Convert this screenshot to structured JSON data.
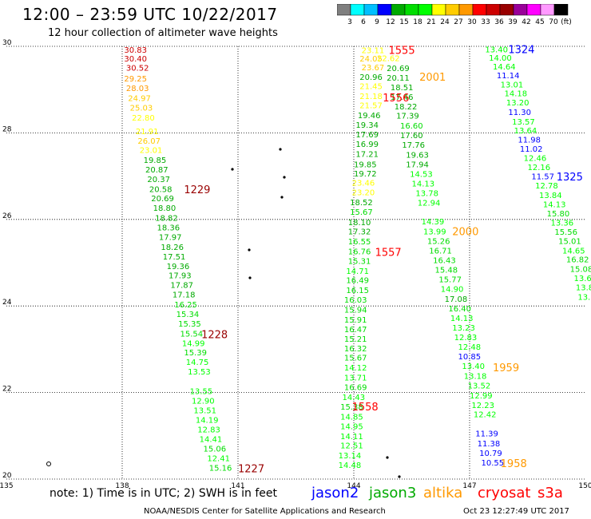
{
  "header": {
    "title": "12:00 – 23:59 UTC 10/22/2017",
    "subtitle": "12 hour collection of altimeter wave heights"
  },
  "colorbar": {
    "colors": [
      "#7f7f7f",
      "#00ffff",
      "#00bfff",
      "#0000ff",
      "#00aa00",
      "#00dd00",
      "#00ff00",
      "#ffff00",
      "#ffcc00",
      "#ff9900",
      "#ff0000",
      "#cc0000",
      "#990000",
      "#990099",
      "#ff00ff",
      "#ff99ff",
      "#000000"
    ],
    "labels": [
      "3",
      "6",
      "9",
      "12",
      "15",
      "18",
      "21",
      "24",
      "27",
      "30",
      "33",
      "36",
      "39",
      "42",
      "45",
      "70"
    ],
    "unit": "(ft)"
  },
  "chart_data": {
    "type": "scatter",
    "xlim": [
      135,
      150
    ],
    "ylim": [
      20,
      30
    ],
    "x_ticks": [
      "135",
      "138",
      "141",
      "144",
      "147",
      "150"
    ],
    "y_ticks": [
      "30",
      "28",
      "26",
      "24",
      "22",
      "20"
    ],
    "grid": true,
    "points": [
      {
        "x": 138.05,
        "y": 29.93,
        "v": "30.83",
        "c": "#cc0000"
      },
      {
        "x": 138.05,
        "y": 29.72,
        "v": "30.40",
        "c": "#cc0000"
      },
      {
        "x": 138.1,
        "y": 29.51,
        "v": "30.52",
        "c": "#cc0000"
      },
      {
        "x": 138.05,
        "y": 29.26,
        "v": "29.25",
        "c": "#ff9900"
      },
      {
        "x": 138.1,
        "y": 29.04,
        "v": "28.03",
        "c": "#ff9900"
      },
      {
        "x": 138.15,
        "y": 28.81,
        "v": "24.97",
        "c": "#ffcc00"
      },
      {
        "x": 138.2,
        "y": 28.59,
        "v": "25.03",
        "c": "#ffcc00"
      },
      {
        "x": 138.25,
        "y": 28.36,
        "v": "22.80",
        "c": "#ffff00"
      },
      {
        "x": 138.35,
        "y": 28.04,
        "v": "21.91",
        "c": "#ffff00"
      },
      {
        "x": 138.4,
        "y": 27.82,
        "v": "26.07",
        "c": "#ffcc00"
      },
      {
        "x": 138.45,
        "y": 27.61,
        "v": "23.01",
        "c": "#ffff00"
      },
      {
        "x": 138.55,
        "y": 27.38,
        "v": "19.85",
        "c": "#00aa00"
      },
      {
        "x": 138.6,
        "y": 27.16,
        "v": "20.87",
        "c": "#00aa00"
      },
      {
        "x": 138.65,
        "y": 26.94,
        "v": "20.37",
        "c": "#00aa00"
      },
      {
        "x": 138.7,
        "y": 26.71,
        "v": "20.58",
        "c": "#00aa00"
      },
      {
        "x": 138.75,
        "y": 26.49,
        "v": "20.69",
        "c": "#00aa00"
      },
      {
        "x": 138.8,
        "y": 26.27,
        "v": "18.80",
        "c": "#00aa00"
      },
      {
        "x": 138.85,
        "y": 26.04,
        "v": "18.82",
        "c": "#00aa00"
      },
      {
        "x": 138.9,
        "y": 25.82,
        "v": "18.36",
        "c": "#00aa00"
      },
      {
        "x": 138.95,
        "y": 25.6,
        "v": "17.97",
        "c": "#00aa00"
      },
      {
        "x": 139.0,
        "y": 25.37,
        "v": "18.26",
        "c": "#00aa00"
      },
      {
        "x": 139.05,
        "y": 25.15,
        "v": "17.51",
        "c": "#00aa00"
      },
      {
        "x": 139.15,
        "y": 24.93,
        "v": "19.36",
        "c": "#00aa00"
      },
      {
        "x": 139.2,
        "y": 24.71,
        "v": "17.93",
        "c": "#00aa00"
      },
      {
        "x": 139.25,
        "y": 24.49,
        "v": "17.87",
        "c": "#00aa00"
      },
      {
        "x": 139.3,
        "y": 24.27,
        "v": "17.18",
        "c": "#00aa00"
      },
      {
        "x": 139.35,
        "y": 24.04,
        "v": "16.25",
        "c": "#00dd00"
      },
      {
        "x": 139.4,
        "y": 23.82,
        "v": "15.34",
        "c": "#00dd00"
      },
      {
        "x": 139.45,
        "y": 23.6,
        "v": "15.35",
        "c": "#00dd00"
      },
      {
        "x": 139.5,
        "y": 23.37,
        "v": "15.54",
        "c": "#00dd00"
      },
      {
        "x": 139.55,
        "y": 23.15,
        "v": "14.99",
        "c": "#00ff00"
      },
      {
        "x": 139.6,
        "y": 22.93,
        "v": "15.39",
        "c": "#00dd00"
      },
      {
        "x": 139.65,
        "y": 22.71,
        "v": "14.75",
        "c": "#00ff00"
      },
      {
        "x": 139.7,
        "y": 22.49,
        "v": "13.53",
        "c": "#00ff00"
      },
      {
        "x": 139.75,
        "y": 22.04,
        "v": "13.55",
        "c": "#00ff00"
      },
      {
        "x": 139.8,
        "y": 21.82,
        "v": "12.90",
        "c": "#00ff00"
      },
      {
        "x": 139.85,
        "y": 21.6,
        "v": "13.51",
        "c": "#00ff00"
      },
      {
        "x": 139.9,
        "y": 21.37,
        "v": "14.19",
        "c": "#00ff00"
      },
      {
        "x": 139.95,
        "y": 21.15,
        "v": "12.83",
        "c": "#00ff00"
      },
      {
        "x": 140.0,
        "y": 20.93,
        "v": "14.41",
        "c": "#00ff00"
      },
      {
        "x": 140.1,
        "y": 20.71,
        "v": "15.06",
        "c": "#00dd00"
      },
      {
        "x": 140.2,
        "y": 20.49,
        "v": "12.41",
        "c": "#00ff00"
      },
      {
        "x": 140.25,
        "y": 20.27,
        "v": "15.16",
        "c": "#00dd00"
      },
      {
        "x": 144.2,
        "y": 29.92,
        "v": "23.11",
        "c": "#ffff00"
      },
      {
        "x": 144.15,
        "y": 29.72,
        "v": "24.05",
        "c": "#ffcc00"
      },
      {
        "x": 144.2,
        "y": 29.52,
        "v": "23.67",
        "c": "#ffcc00"
      },
      {
        "x": 144.15,
        "y": 29.3,
        "v": "20.96",
        "c": "#00aa00"
      },
      {
        "x": 144.15,
        "y": 29.09,
        "v": "21.45",
        "c": "#ffff00"
      },
      {
        "x": 144.15,
        "y": 28.86,
        "v": "21.18",
        "c": "#ffff00"
      },
      {
        "x": 144.15,
        "y": 28.64,
        "v": "21.57",
        "c": "#ffff00"
      },
      {
        "x": 144.1,
        "y": 28.41,
        "v": "19.46",
        "c": "#00aa00"
      },
      {
        "x": 144.05,
        "y": 28.19,
        "v": "19.34",
        "c": "#00aa00"
      },
      {
        "x": 144.05,
        "y": 27.97,
        "v": "17.69",
        "c": "#00aa00"
      },
      {
        "x": 144.05,
        "y": 27.75,
        "v": "16.99",
        "c": "#00aa00"
      },
      {
        "x": 144.05,
        "y": 27.52,
        "v": "17.21",
        "c": "#00aa00"
      },
      {
        "x": 144.0,
        "y": 27.28,
        "v": "19.85",
        "c": "#00aa00"
      },
      {
        "x": 144.0,
        "y": 27.07,
        "v": "19.72",
        "c": "#00aa00"
      },
      {
        "x": 143.95,
        "y": 26.85,
        "v": "23.46",
        "c": "#ffff00"
      },
      {
        "x": 143.95,
        "y": 26.63,
        "v": "23.20",
        "c": "#ffff00"
      },
      {
        "x": 143.9,
        "y": 26.4,
        "v": "18.52",
        "c": "#00aa00"
      },
      {
        "x": 143.9,
        "y": 26.18,
        "v": "15.67",
        "c": "#00dd00"
      },
      {
        "x": 143.85,
        "y": 25.94,
        "v": "18.10",
        "c": "#00aa00"
      },
      {
        "x": 143.85,
        "y": 25.73,
        "v": "17.32",
        "c": "#00aa00"
      },
      {
        "x": 143.85,
        "y": 25.5,
        "v": "16.55",
        "c": "#00dd00"
      },
      {
        "x": 143.85,
        "y": 25.27,
        "v": "16.76",
        "c": "#00dd00"
      },
      {
        "x": 143.85,
        "y": 25.05,
        "v": "15.31",
        "c": "#00dd00"
      },
      {
        "x": 143.8,
        "y": 24.82,
        "v": "14.71",
        "c": "#00ff00"
      },
      {
        "x": 143.8,
        "y": 24.6,
        "v": "16.49",
        "c": "#00dd00"
      },
      {
        "x": 143.8,
        "y": 24.37,
        "v": "16.15",
        "c": "#00dd00"
      },
      {
        "x": 143.75,
        "y": 24.15,
        "v": "16.03",
        "c": "#00dd00"
      },
      {
        "x": 143.75,
        "y": 23.92,
        "v": "15.94",
        "c": "#00dd00"
      },
      {
        "x": 143.75,
        "y": 23.69,
        "v": "15.91",
        "c": "#00dd00"
      },
      {
        "x": 143.75,
        "y": 23.47,
        "v": "16.47",
        "c": "#00dd00"
      },
      {
        "x": 143.75,
        "y": 23.25,
        "v": "15.21",
        "c": "#00dd00"
      },
      {
        "x": 143.75,
        "y": 23.03,
        "v": "16.32",
        "c": "#00dd00"
      },
      {
        "x": 143.75,
        "y": 22.81,
        "v": "15.67",
        "c": "#00dd00"
      },
      {
        "x": 143.75,
        "y": 22.58,
        "v": "14.12",
        "c": "#00ff00"
      },
      {
        "x": 143.75,
        "y": 22.35,
        "v": "13.71",
        "c": "#00ff00"
      },
      {
        "x": 143.75,
        "y": 22.13,
        "v": "16.69",
        "c": "#00dd00"
      },
      {
        "x": 143.7,
        "y": 21.9,
        "v": "14.43",
        "c": "#00ff00"
      },
      {
        "x": 143.65,
        "y": 21.68,
        "v": "15.38",
        "c": "#00dd00"
      },
      {
        "x": 143.65,
        "y": 21.45,
        "v": "14.85",
        "c": "#00ff00"
      },
      {
        "x": 143.65,
        "y": 21.23,
        "v": "14.95",
        "c": "#00ff00"
      },
      {
        "x": 143.65,
        "y": 21.0,
        "v": "14.11",
        "c": "#00ff00"
      },
      {
        "x": 143.65,
        "y": 20.78,
        "v": "12.51",
        "c": "#00ff00"
      },
      {
        "x": 143.6,
        "y": 20.55,
        "v": "13.14",
        "c": "#00ff00"
      },
      {
        "x": 143.6,
        "y": 20.33,
        "v": "14.48",
        "c": "#00ff00"
      },
      {
        "x": 144.6,
        "y": 29.73,
        "v": "22.62",
        "c": "#ffff00"
      },
      {
        "x": 144.85,
        "y": 29.5,
        "v": "20.69",
        "c": "#00aa00"
      },
      {
        "x": 144.85,
        "y": 29.28,
        "v": "20.11",
        "c": "#00aa00"
      },
      {
        "x": 144.95,
        "y": 29.06,
        "v": "18.51",
        "c": "#00aa00"
      },
      {
        "x": 144.95,
        "y": 28.84,
        "v": "17.46",
        "c": "#00aa00"
      },
      {
        "x": 145.05,
        "y": 28.62,
        "v": "18.22",
        "c": "#00aa00"
      },
      {
        "x": 145.1,
        "y": 28.4,
        "v": "17.39",
        "c": "#00aa00"
      },
      {
        "x": 145.2,
        "y": 28.17,
        "v": "16.60",
        "c": "#00dd00"
      },
      {
        "x": 145.2,
        "y": 27.95,
        "v": "17.60",
        "c": "#00aa00"
      },
      {
        "x": 145.25,
        "y": 27.73,
        "v": "17.76",
        "c": "#00aa00"
      },
      {
        "x": 145.35,
        "y": 27.5,
        "v": "19.63",
        "c": "#00aa00"
      },
      {
        "x": 145.35,
        "y": 27.28,
        "v": "17.94",
        "c": "#00aa00"
      },
      {
        "x": 145.45,
        "y": 27.06,
        "v": "14.53",
        "c": "#00ff00"
      },
      {
        "x": 145.5,
        "y": 26.84,
        "v": "14.13",
        "c": "#00ff00"
      },
      {
        "x": 145.6,
        "y": 26.61,
        "v": "13.78",
        "c": "#00ff00"
      },
      {
        "x": 145.65,
        "y": 26.39,
        "v": "12.94",
        "c": "#00ff00"
      },
      {
        "x": 145.75,
        "y": 25.96,
        "v": "14.39",
        "c": "#00ff00"
      },
      {
        "x": 145.8,
        "y": 25.73,
        "v": "13.99",
        "c": "#00ff00"
      },
      {
        "x": 145.9,
        "y": 25.51,
        "v": "15.26",
        "c": "#00dd00"
      },
      {
        "x": 145.95,
        "y": 25.29,
        "v": "16.71",
        "c": "#00dd00"
      },
      {
        "x": 146.05,
        "y": 25.06,
        "v": "16.43",
        "c": "#00dd00"
      },
      {
        "x": 146.1,
        "y": 24.84,
        "v": "15.48",
        "c": "#00dd00"
      },
      {
        "x": 146.2,
        "y": 24.62,
        "v": "15.77",
        "c": "#00dd00"
      },
      {
        "x": 146.25,
        "y": 24.4,
        "v": "14.90",
        "c": "#00ff00"
      },
      {
        "x": 146.35,
        "y": 24.17,
        "v": "17.08",
        "c": "#00aa00"
      },
      {
        "x": 146.45,
        "y": 23.95,
        "v": "16.40",
        "c": "#00dd00"
      },
      {
        "x": 146.5,
        "y": 23.73,
        "v": "14.13",
        "c": "#00ff00"
      },
      {
        "x": 146.55,
        "y": 23.51,
        "v": "13.23",
        "c": "#00ff00"
      },
      {
        "x": 146.6,
        "y": 23.28,
        "v": "12.83",
        "c": "#00ff00"
      },
      {
        "x": 146.7,
        "y": 23.06,
        "v": "12.48",
        "c": "#00ff00"
      },
      {
        "x": 146.7,
        "y": 22.84,
        "v": "10.85",
        "c": "#0000ff"
      },
      {
        "x": 146.8,
        "y": 22.62,
        "v": "13.40",
        "c": "#00ff00"
      },
      {
        "x": 146.85,
        "y": 22.39,
        "v": "13.18",
        "c": "#00ff00"
      },
      {
        "x": 146.95,
        "y": 22.17,
        "v": "13.52",
        "c": "#00ff00"
      },
      {
        "x": 147.0,
        "y": 21.94,
        "v": "12.99",
        "c": "#00ff00"
      },
      {
        "x": 147.05,
        "y": 21.72,
        "v": "12.23",
        "c": "#00ff00"
      },
      {
        "x": 147.1,
        "y": 21.5,
        "v": "12.42",
        "c": "#00ff00"
      },
      {
        "x": 147.15,
        "y": 21.06,
        "v": "11.39",
        "c": "#0000ff"
      },
      {
        "x": 147.2,
        "y": 20.83,
        "v": "11.38",
        "c": "#0000ff"
      },
      {
        "x": 147.25,
        "y": 20.61,
        "v": "10.79",
        "c": "#0000ff"
      },
      {
        "x": 147.3,
        "y": 20.39,
        "v": "10.55",
        "c": "#0000ff"
      },
      {
        "x": 147.4,
        "y": 29.94,
        "v": "13.40",
        "c": "#00ff00"
      },
      {
        "x": 147.5,
        "y": 29.74,
        "v": "14.00",
        "c": "#00ff00"
      },
      {
        "x": 147.6,
        "y": 29.54,
        "v": "14.64",
        "c": "#00ff00"
      },
      {
        "x": 147.7,
        "y": 29.34,
        "v": "11.14",
        "c": "#0000ff"
      },
      {
        "x": 147.8,
        "y": 29.12,
        "v": "13.01",
        "c": "#00ff00"
      },
      {
        "x": 147.9,
        "y": 28.92,
        "v": "14.18",
        "c": "#00ff00"
      },
      {
        "x": 147.95,
        "y": 28.71,
        "v": "13.20",
        "c": "#00ff00"
      },
      {
        "x": 148.0,
        "y": 28.49,
        "v": "11.30",
        "c": "#0000ff"
      },
      {
        "x": 148.1,
        "y": 28.27,
        "v": "13.57",
        "c": "#00ff00"
      },
      {
        "x": 148.15,
        "y": 28.06,
        "v": "13.64",
        "c": "#00ff00"
      },
      {
        "x": 148.25,
        "y": 27.85,
        "v": "11.98",
        "c": "#0000ff"
      },
      {
        "x": 148.3,
        "y": 27.64,
        "v": "11.02",
        "c": "#0000ff"
      },
      {
        "x": 148.4,
        "y": 27.43,
        "v": "12.46",
        "c": "#00ff00"
      },
      {
        "x": 148.5,
        "y": 27.21,
        "v": "12.16",
        "c": "#00ff00"
      },
      {
        "x": 148.6,
        "y": 27.0,
        "v": "11.57",
        "c": "#0000ff"
      },
      {
        "x": 148.7,
        "y": 26.79,
        "v": "12.78",
        "c": "#00ff00"
      },
      {
        "x": 148.8,
        "y": 26.57,
        "v": "13.84",
        "c": "#00ff00"
      },
      {
        "x": 148.9,
        "y": 26.36,
        "v": "14.13",
        "c": "#00ff00"
      },
      {
        "x": 149.0,
        "y": 26.14,
        "v": "15.80",
        "c": "#00dd00"
      },
      {
        "x": 149.1,
        "y": 25.93,
        "v": "13.36",
        "c": "#00ff00"
      },
      {
        "x": 149.2,
        "y": 25.72,
        "v": "15.56",
        "c": "#00dd00"
      },
      {
        "x": 149.3,
        "y": 25.51,
        "v": "15.01",
        "c": "#00dd00"
      },
      {
        "x": 149.4,
        "y": 25.29,
        "v": "14.65",
        "c": "#00ff00"
      },
      {
        "x": 149.5,
        "y": 25.08,
        "v": "16.82",
        "c": "#00dd00"
      },
      {
        "x": 149.6,
        "y": 24.86,
        "v": "15.08",
        "c": "#00dd00"
      },
      {
        "x": 149.7,
        "y": 24.65,
        "v": "13.6",
        "c": "#00ff00"
      },
      {
        "x": 149.75,
        "y": 24.44,
        "v": "13.8",
        "c": "#00ff00"
      },
      {
        "x": 149.8,
        "y": 24.22,
        "v": "13.",
        "c": "#00ff00"
      }
    ],
    "time_labels": [
      {
        "x": 139.6,
        "y": 26.7,
        "t": "1229",
        "c": "#990000"
      },
      {
        "x": 140.05,
        "y": 23.35,
        "t": "1228",
        "c": "#990000"
      },
      {
        "x": 141.0,
        "y": 20.25,
        "t": "1227",
        "c": "#990000"
      },
      {
        "x": 144.9,
        "y": 29.92,
        "t": "1555",
        "c": "#ff0000"
      },
      {
        "x": 144.75,
        "y": 28.82,
        "t": "1556",
        "c": "#ff0000"
      },
      {
        "x": 144.55,
        "y": 25.25,
        "t": "1557",
        "c": "#ff0000"
      },
      {
        "x": 143.95,
        "y": 21.68,
        "t": "1558",
        "c": "#ff0000"
      },
      {
        "x": 145.7,
        "y": 29.3,
        "t": "2001",
        "c": "#ff9900"
      },
      {
        "x": 146.55,
        "y": 25.73,
        "t": "2000",
        "c": "#ff9900"
      },
      {
        "x": 147.6,
        "y": 22.58,
        "t": "1959",
        "c": "#ff9900"
      },
      {
        "x": 147.8,
        "y": 20.37,
        "t": "1958",
        "c": "#ff9900"
      },
      {
        "x": 148.0,
        "y": 29.94,
        "t": "1324",
        "c": "#0000ff"
      },
      {
        "x": 149.25,
        "y": 26.99,
        "t": "1325",
        "c": "#0000ff"
      }
    ]
  },
  "footer": {
    "note": "note: 1) Time is in UTC; 2) SWH is in feet",
    "satellites": [
      {
        "name": "jason2",
        "color": "#0000ff"
      },
      {
        "name": "jason3",
        "color": "#00aa00"
      },
      {
        "name": "altika",
        "color": "#ff9900"
      },
      {
        "name": "cryosat",
        "color": "#ff0000"
      },
      {
        "name": "s3a",
        "color": "#ff0000"
      }
    ],
    "credit": "NOAA/NESDIS Center for Satellite Applications and Research",
    "timestamp": "Oct 23 12:27:49 UTC 2017"
  }
}
